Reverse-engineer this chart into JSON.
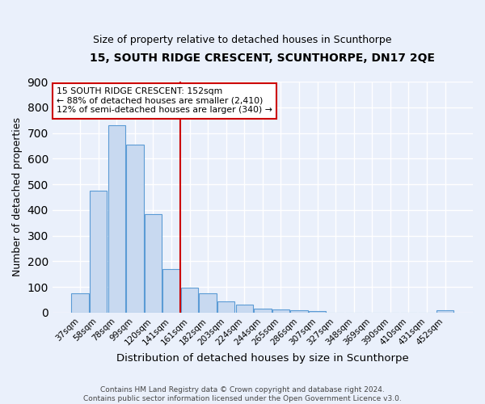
{
  "title": "15, SOUTH RIDGE CRESCENT, SCUNTHORPE, DN17 2QE",
  "subtitle": "Size of property relative to detached houses in Scunthorpe",
  "xlabel": "Distribution of detached houses by size in Scunthorpe",
  "ylabel": "Number of detached properties",
  "footer_line1": "Contains HM Land Registry data © Crown copyright and database right 2024.",
  "footer_line2": "Contains public sector information licensed under the Open Government Licence v3.0.",
  "bar_labels": [
    "37sqm",
    "58sqm",
    "78sqm",
    "99sqm",
    "120sqm",
    "141sqm",
    "161sqm",
    "182sqm",
    "203sqm",
    "224sqm",
    "244sqm",
    "265sqm",
    "286sqm",
    "307sqm",
    "327sqm",
    "348sqm",
    "369sqm",
    "390sqm",
    "410sqm",
    "431sqm",
    "452sqm"
  ],
  "bar_values": [
    75,
    475,
    730,
    655,
    385,
    170,
    98,
    75,
    45,
    32,
    15,
    12,
    9,
    5,
    0,
    0,
    0,
    0,
    0,
    0,
    8
  ],
  "bar_color": "#c8d9f0",
  "bar_edge_color": "#5b9bd5",
  "background_color": "#eaf0fb",
  "grid_color": "#ffffff",
  "vline_x": 5.5,
  "vline_color": "#cc0000",
  "annotation_line1": "15 SOUTH RIDGE CRESCENT: 152sqm",
  "annotation_line2": "← 88% of detached houses are smaller (2,410)",
  "annotation_line3": "12% of semi-detached houses are larger (340) →",
  "annotation_box_color": "white",
  "annotation_box_edge": "#cc0000",
  "ylim": [
    0,
    900
  ],
  "yticks": [
    0,
    100,
    200,
    300,
    400,
    500,
    600,
    700,
    800,
    900
  ]
}
